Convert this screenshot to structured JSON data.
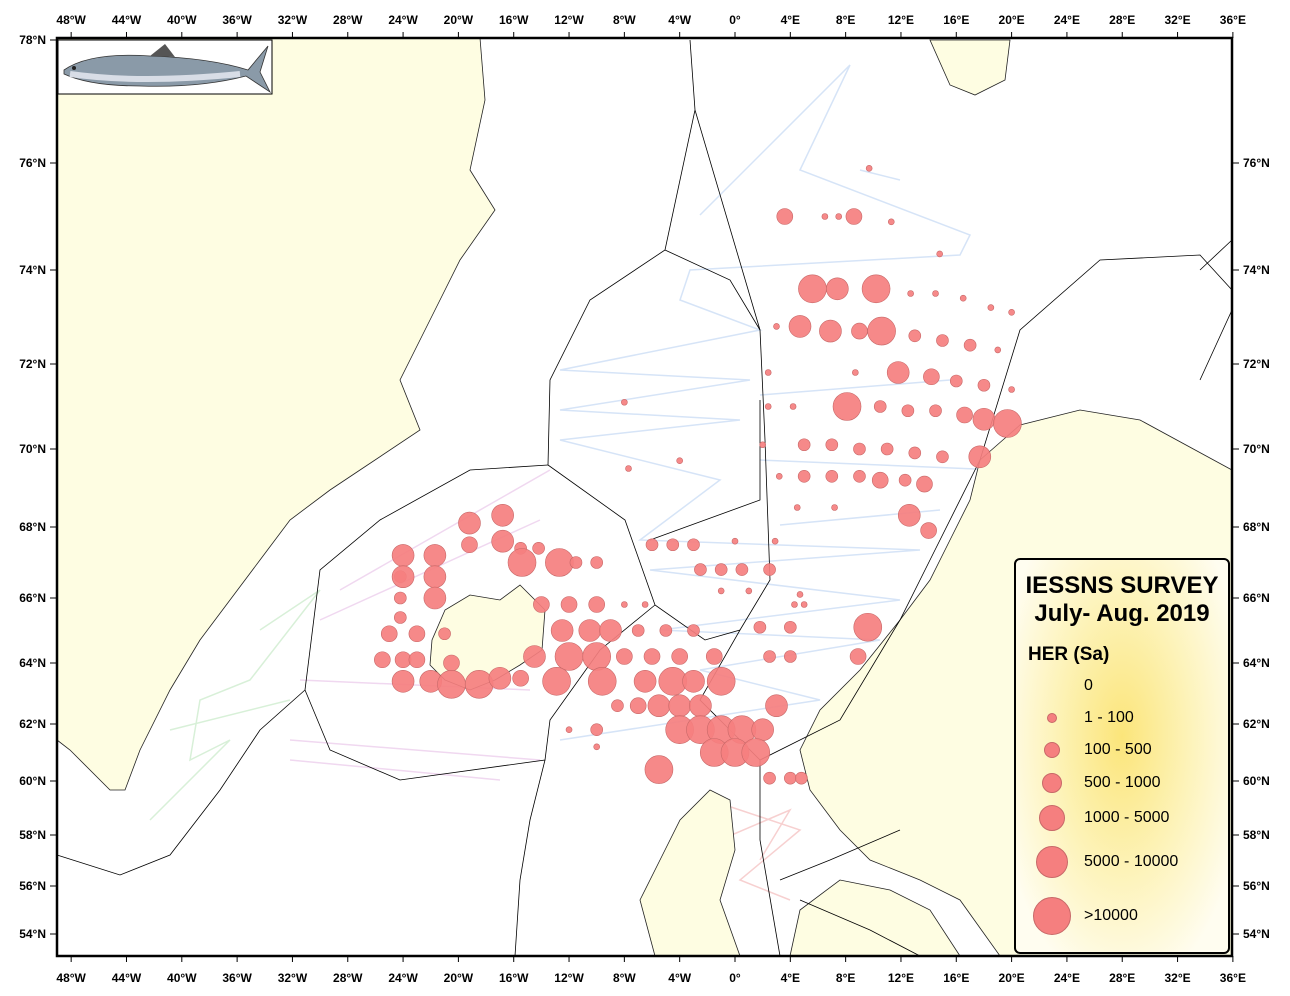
{
  "map": {
    "lon_labels": [
      "48°W",
      "44°W",
      "40°W",
      "36°W",
      "32°W",
      "28°W",
      "24°W",
      "20°W",
      "16°W",
      "12°W",
      "8°W",
      "4°W",
      "0°",
      "4°E",
      "8°E",
      "12°E",
      "16°E",
      "20°E",
      "24°E",
      "28°E",
      "32°E",
      "36°E"
    ],
    "lat_labels_left": [
      "78°N",
      "76°N",
      "74°N",
      "72°N",
      "70°N",
      "68°N",
      "66°N",
      "64°N",
      "62°N",
      "60°N",
      "58°N",
      "56°N",
      "54°N"
    ],
    "lat_labels_right": [
      "76°N",
      "74°N",
      "72°N",
      "70°N",
      "68°N",
      "66°N",
      "64°N",
      "62°N",
      "60°N",
      "58°N",
      "56°N",
      "54°N"
    ],
    "colors": {
      "land": "#fefde2",
      "bubble": "#f57f7f",
      "bubble_stroke": "#c86868",
      "tracks": "#cfe0f5",
      "eez": "#000000"
    },
    "species_image": "atlantic-herring"
  },
  "legend": {
    "title_line1": "IESSNS SURVEY",
    "title_line2": "July- Aug. 2019",
    "variable": "HER (Sa)",
    "classes": [
      {
        "label": "0",
        "class": 0
      },
      {
        "label": "1 - 100",
        "class": 1
      },
      {
        "label": "100 - 500",
        "class": 2
      },
      {
        "label": "500 - 1000",
        "class": 3
      },
      {
        "label": "1000 - 5000",
        "class": 4
      },
      {
        "label": "5000 - 10000",
        "class": 5
      },
      {
        "label": ">10000",
        "class": 6
      }
    ]
  },
  "stations": [
    [
      3.6,
      75.0,
      3
    ],
    [
      6.5,
      75.0,
      1
    ],
    [
      7.5,
      75.0,
      1
    ],
    [
      8.6,
      75.0,
      3
    ],
    [
      11.3,
      74.9,
      1
    ],
    [
      9.7,
      75.9,
      1
    ],
    [
      14.8,
      74.3,
      1
    ],
    [
      5.6,
      73.6,
      5
    ],
    [
      7.4,
      73.6,
      4
    ],
    [
      10.2,
      73.6,
      5
    ],
    [
      12.7,
      73.5,
      1
    ],
    [
      14.5,
      73.5,
      1
    ],
    [
      16.5,
      73.4,
      1
    ],
    [
      18.5,
      73.2,
      1
    ],
    [
      20,
      73.1,
      1
    ],
    [
      3.0,
      72.8,
      1
    ],
    [
      4.7,
      72.8,
      4
    ],
    [
      6.9,
      72.7,
      4
    ],
    [
      9.0,
      72.7,
      3
    ],
    [
      10.6,
      72.7,
      5
    ],
    [
      13,
      72.6,
      2
    ],
    [
      15,
      72.5,
      2
    ],
    [
      17,
      72.4,
      2
    ],
    [
      19,
      72.3,
      1
    ],
    [
      2.4,
      71.8,
      1
    ],
    [
      8.7,
      71.8,
      1
    ],
    [
      11.8,
      71.8,
      4
    ],
    [
      14.2,
      71.7,
      3
    ],
    [
      16,
      71.6,
      2
    ],
    [
      18,
      71.5,
      2
    ],
    [
      20,
      71.4,
      1
    ],
    [
      2.4,
      71.0,
      1
    ],
    [
      4.2,
      71.0,
      1
    ],
    [
      8.1,
      71.0,
      5
    ],
    [
      10.5,
      71.0,
      2
    ],
    [
      12.5,
      70.9,
      2
    ],
    [
      14.5,
      70.9,
      2
    ],
    [
      16.6,
      70.8,
      3
    ],
    [
      18.0,
      70.7,
      4
    ],
    [
      19.7,
      70.6,
      5
    ],
    [
      2.0,
      70.1,
      1
    ],
    [
      5.0,
      70.1,
      2
    ],
    [
      7,
      70.1,
      2
    ],
    [
      9,
      70.0,
      2
    ],
    [
      11,
      70.0,
      2
    ],
    [
      13,
      69.9,
      2
    ],
    [
      15,
      69.8,
      2
    ],
    [
      17.7,
      69.8,
      4
    ],
    [
      3.2,
      69.3,
      1
    ],
    [
      5,
      69.3,
      2
    ],
    [
      7,
      69.3,
      2
    ],
    [
      9,
      69.3,
      2
    ],
    [
      10.5,
      69.2,
      3
    ],
    [
      12.3,
      69.2,
      2
    ],
    [
      13.7,
      69.1,
      3
    ],
    [
      4.5,
      68.5,
      1
    ],
    [
      7.2,
      68.5,
      1
    ],
    [
      12.6,
      68.3,
      4
    ],
    [
      14.0,
      67.9,
      3
    ],
    [
      -6,
      67.5,
      2
    ],
    [
      -4.5,
      67.5,
      2
    ],
    [
      -3,
      67.5,
      2
    ],
    [
      0,
      67.6,
      1
    ],
    [
      2.9,
      67.6,
      1
    ],
    [
      -2.5,
      66.8,
      2
    ],
    [
      -1,
      66.8,
      2
    ],
    [
      0.5,
      66.8,
      2
    ],
    [
      2.5,
      66.8,
      2
    ],
    [
      -1,
      66.2,
      1
    ],
    [
      1,
      66.2,
      1
    ],
    [
      4.7,
      66.1,
      1
    ],
    [
      -14,
      65.8,
      3
    ],
    [
      -12,
      65.8,
      3
    ],
    [
      -10,
      65.8,
      3
    ],
    [
      -8,
      65.8,
      1
    ],
    [
      -6.5,
      65.8,
      1
    ],
    [
      4.3,
      65.8,
      1
    ],
    [
      5,
      65.8,
      1
    ],
    [
      -12.5,
      65.0,
      4
    ],
    [
      -10.5,
      65.0,
      4
    ],
    [
      -9,
      65.0,
      4
    ],
    [
      -7,
      65.0,
      2
    ],
    [
      -5,
      65.0,
      2
    ],
    [
      -3,
      65.0,
      2
    ],
    [
      1.8,
      65.1,
      2
    ],
    [
      4,
      65.1,
      2
    ],
    [
      9.6,
      65.1,
      5
    ],
    [
      -14.5,
      64.2,
      4
    ],
    [
      -12,
      64.2,
      5
    ],
    [
      -10,
      64.2,
      5
    ],
    [
      -8,
      64.2,
      3
    ],
    [
      -6,
      64.2,
      3
    ],
    [
      -4,
      64.2,
      3
    ],
    [
      -1.5,
      64.2,
      3
    ],
    [
      2.5,
      64.2,
      2
    ],
    [
      4.0,
      64.2,
      2
    ],
    [
      8.9,
      64.2,
      3
    ],
    [
      -12.9,
      63.4,
      5
    ],
    [
      -9.6,
      63.4,
      5
    ],
    [
      -6.5,
      63.4,
      4
    ],
    [
      -4.5,
      63.4,
      5
    ],
    [
      -3,
      63.4,
      4
    ],
    [
      -1,
      63.4,
      5
    ],
    [
      3,
      62.6,
      4
    ],
    [
      -8.5,
      62.6,
      2
    ],
    [
      -7,
      62.6,
      3
    ],
    [
      -5.5,
      62.6,
      4
    ],
    [
      -4,
      62.6,
      4
    ],
    [
      -2.5,
      62.6,
      4
    ],
    [
      -4,
      61.8,
      5
    ],
    [
      -2.5,
      61.8,
      5
    ],
    [
      -1,
      61.8,
      5
    ],
    [
      0.5,
      61.8,
      5
    ],
    [
      2,
      61.8,
      4
    ],
    [
      -12,
      61.8,
      1
    ],
    [
      -10,
      61.8,
      2
    ],
    [
      -1.5,
      61.0,
      5
    ],
    [
      0,
      61.0,
      5
    ],
    [
      1.5,
      61.0,
      5
    ],
    [
      -5.5,
      60.4,
      5
    ],
    [
      -10,
      61.2,
      1
    ],
    [
      2.5,
      60.1,
      2
    ],
    [
      4,
      60.1,
      2
    ],
    [
      4.8,
      60.1,
      2
    ],
    [
      -24.2,
      66.6,
      2
    ],
    [
      -24.2,
      66.0,
      2
    ],
    [
      -24.2,
      65.4,
      2
    ],
    [
      -25,
      64.9,
      3
    ],
    [
      -23,
      64.9,
      3
    ],
    [
      -21,
      64.9,
      2
    ],
    [
      -24,
      67.2,
      4
    ],
    [
      -24,
      66.6,
      4
    ],
    [
      -21.7,
      67.2,
      4
    ],
    [
      -21.7,
      66.6,
      4
    ],
    [
      -21.7,
      66.0,
      4
    ],
    [
      -19.2,
      67.5,
      3
    ],
    [
      -19.2,
      68.1,
      4
    ],
    [
      -16.8,
      68.3,
      4
    ],
    [
      -16.8,
      67.6,
      4
    ],
    [
      -15.5,
      67.4,
      2
    ],
    [
      -14.2,
      67.4,
      2
    ],
    [
      -15.4,
      67.0,
      5
    ],
    [
      -12.7,
      67.0,
      5
    ],
    [
      -11.5,
      67.0,
      2
    ],
    [
      -10,
      67.0,
      2
    ],
    [
      -25.5,
      64.1,
      3
    ],
    [
      -24,
      64.1,
      3
    ],
    [
      -23,
      64.1,
      3
    ],
    [
      -20.5,
      64.0,
      3
    ],
    [
      -24,
      63.4,
      4
    ],
    [
      -22,
      63.4,
      4
    ],
    [
      -20.5,
      63.3,
      5
    ],
    [
      -18.5,
      63.3,
      5
    ],
    [
      -17,
      63.5,
      4
    ],
    [
      -15.5,
      63.5,
      3
    ],
    [
      -8,
      71.1,
      1
    ],
    [
      -7.7,
      69.5,
      1
    ],
    [
      -4,
      69.7,
      1
    ]
  ]
}
